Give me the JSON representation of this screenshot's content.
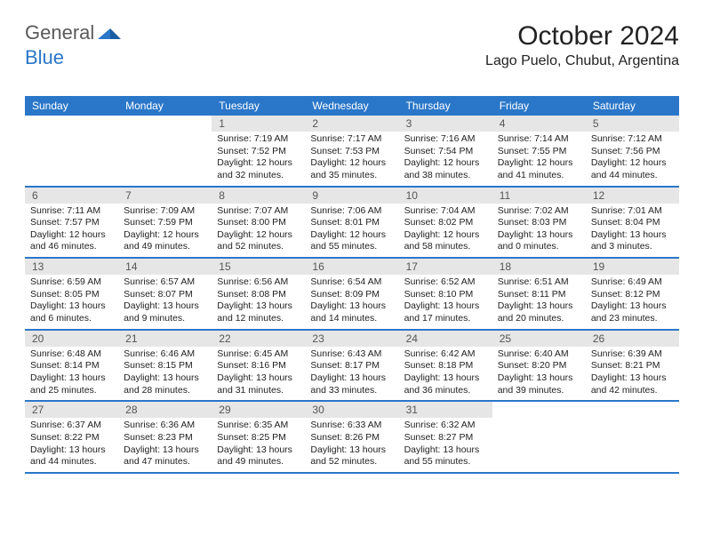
{
  "logo": {
    "text1": "General",
    "text2": "Blue"
  },
  "title": "October 2024",
  "location": "Lago Puelo, Chubut, Argentina",
  "colors": {
    "header_bg": "#2a77c9",
    "daynum_bg": "#e6e6e6",
    "text": "#222222",
    "logo_gray": "#5a5a5a"
  },
  "dow": [
    "Sunday",
    "Monday",
    "Tuesday",
    "Wednesday",
    "Thursday",
    "Friday",
    "Saturday"
  ],
  "weeks": [
    [
      {
        "empty": true,
        "n": "",
        "sr": "",
        "ss": "",
        "dl1": "",
        "dl2": ""
      },
      {
        "empty": true,
        "n": "",
        "sr": "",
        "ss": "",
        "dl1": "",
        "dl2": ""
      },
      {
        "n": "1",
        "sr": "Sunrise: 7:19 AM",
        "ss": "Sunset: 7:52 PM",
        "dl1": "Daylight: 12 hours",
        "dl2": "and 32 minutes."
      },
      {
        "n": "2",
        "sr": "Sunrise: 7:17 AM",
        "ss": "Sunset: 7:53 PM",
        "dl1": "Daylight: 12 hours",
        "dl2": "and 35 minutes."
      },
      {
        "n": "3",
        "sr": "Sunrise: 7:16 AM",
        "ss": "Sunset: 7:54 PM",
        "dl1": "Daylight: 12 hours",
        "dl2": "and 38 minutes."
      },
      {
        "n": "4",
        "sr": "Sunrise: 7:14 AM",
        "ss": "Sunset: 7:55 PM",
        "dl1": "Daylight: 12 hours",
        "dl2": "and 41 minutes."
      },
      {
        "n": "5",
        "sr": "Sunrise: 7:12 AM",
        "ss": "Sunset: 7:56 PM",
        "dl1": "Daylight: 12 hours",
        "dl2": "and 44 minutes."
      }
    ],
    [
      {
        "n": "6",
        "sr": "Sunrise: 7:11 AM",
        "ss": "Sunset: 7:57 PM",
        "dl1": "Daylight: 12 hours",
        "dl2": "and 46 minutes."
      },
      {
        "n": "7",
        "sr": "Sunrise: 7:09 AM",
        "ss": "Sunset: 7:59 PM",
        "dl1": "Daylight: 12 hours",
        "dl2": "and 49 minutes."
      },
      {
        "n": "8",
        "sr": "Sunrise: 7:07 AM",
        "ss": "Sunset: 8:00 PM",
        "dl1": "Daylight: 12 hours",
        "dl2": "and 52 minutes."
      },
      {
        "n": "9",
        "sr": "Sunrise: 7:06 AM",
        "ss": "Sunset: 8:01 PM",
        "dl1": "Daylight: 12 hours",
        "dl2": "and 55 minutes."
      },
      {
        "n": "10",
        "sr": "Sunrise: 7:04 AM",
        "ss": "Sunset: 8:02 PM",
        "dl1": "Daylight: 12 hours",
        "dl2": "and 58 minutes."
      },
      {
        "n": "11",
        "sr": "Sunrise: 7:02 AM",
        "ss": "Sunset: 8:03 PM",
        "dl1": "Daylight: 13 hours",
        "dl2": "and 0 minutes."
      },
      {
        "n": "12",
        "sr": "Sunrise: 7:01 AM",
        "ss": "Sunset: 8:04 PM",
        "dl1": "Daylight: 13 hours",
        "dl2": "and 3 minutes."
      }
    ],
    [
      {
        "n": "13",
        "sr": "Sunrise: 6:59 AM",
        "ss": "Sunset: 8:05 PM",
        "dl1": "Daylight: 13 hours",
        "dl2": "and 6 minutes."
      },
      {
        "n": "14",
        "sr": "Sunrise: 6:57 AM",
        "ss": "Sunset: 8:07 PM",
        "dl1": "Daylight: 13 hours",
        "dl2": "and 9 minutes."
      },
      {
        "n": "15",
        "sr": "Sunrise: 6:56 AM",
        "ss": "Sunset: 8:08 PM",
        "dl1": "Daylight: 13 hours",
        "dl2": "and 12 minutes."
      },
      {
        "n": "16",
        "sr": "Sunrise: 6:54 AM",
        "ss": "Sunset: 8:09 PM",
        "dl1": "Daylight: 13 hours",
        "dl2": "and 14 minutes."
      },
      {
        "n": "17",
        "sr": "Sunrise: 6:52 AM",
        "ss": "Sunset: 8:10 PM",
        "dl1": "Daylight: 13 hours",
        "dl2": "and 17 minutes."
      },
      {
        "n": "18",
        "sr": "Sunrise: 6:51 AM",
        "ss": "Sunset: 8:11 PM",
        "dl1": "Daylight: 13 hours",
        "dl2": "and 20 minutes."
      },
      {
        "n": "19",
        "sr": "Sunrise: 6:49 AM",
        "ss": "Sunset: 8:12 PM",
        "dl1": "Daylight: 13 hours",
        "dl2": "and 23 minutes."
      }
    ],
    [
      {
        "n": "20",
        "sr": "Sunrise: 6:48 AM",
        "ss": "Sunset: 8:14 PM",
        "dl1": "Daylight: 13 hours",
        "dl2": "and 25 minutes."
      },
      {
        "n": "21",
        "sr": "Sunrise: 6:46 AM",
        "ss": "Sunset: 8:15 PM",
        "dl1": "Daylight: 13 hours",
        "dl2": "and 28 minutes."
      },
      {
        "n": "22",
        "sr": "Sunrise: 6:45 AM",
        "ss": "Sunset: 8:16 PM",
        "dl1": "Daylight: 13 hours",
        "dl2": "and 31 minutes."
      },
      {
        "n": "23",
        "sr": "Sunrise: 6:43 AM",
        "ss": "Sunset: 8:17 PM",
        "dl1": "Daylight: 13 hours",
        "dl2": "and 33 minutes."
      },
      {
        "n": "24",
        "sr": "Sunrise: 6:42 AM",
        "ss": "Sunset: 8:18 PM",
        "dl1": "Daylight: 13 hours",
        "dl2": "and 36 minutes."
      },
      {
        "n": "25",
        "sr": "Sunrise: 6:40 AM",
        "ss": "Sunset: 8:20 PM",
        "dl1": "Daylight: 13 hours",
        "dl2": "and 39 minutes."
      },
      {
        "n": "26",
        "sr": "Sunrise: 6:39 AM",
        "ss": "Sunset: 8:21 PM",
        "dl1": "Daylight: 13 hours",
        "dl2": "and 42 minutes."
      }
    ],
    [
      {
        "n": "27",
        "sr": "Sunrise: 6:37 AM",
        "ss": "Sunset: 8:22 PM",
        "dl1": "Daylight: 13 hours",
        "dl2": "and 44 minutes."
      },
      {
        "n": "28",
        "sr": "Sunrise: 6:36 AM",
        "ss": "Sunset: 8:23 PM",
        "dl1": "Daylight: 13 hours",
        "dl2": "and 47 minutes."
      },
      {
        "n": "29",
        "sr": "Sunrise: 6:35 AM",
        "ss": "Sunset: 8:25 PM",
        "dl1": "Daylight: 13 hours",
        "dl2": "and 49 minutes."
      },
      {
        "n": "30",
        "sr": "Sunrise: 6:33 AM",
        "ss": "Sunset: 8:26 PM",
        "dl1": "Daylight: 13 hours",
        "dl2": "and 52 minutes."
      },
      {
        "n": "31",
        "sr": "Sunrise: 6:32 AM",
        "ss": "Sunset: 8:27 PM",
        "dl1": "Daylight: 13 hours",
        "dl2": "and 55 minutes."
      },
      {
        "empty": true,
        "n": "",
        "sr": "",
        "ss": "",
        "dl1": "",
        "dl2": ""
      },
      {
        "empty": true,
        "n": "",
        "sr": "",
        "ss": "",
        "dl1": "",
        "dl2": ""
      }
    ]
  ]
}
